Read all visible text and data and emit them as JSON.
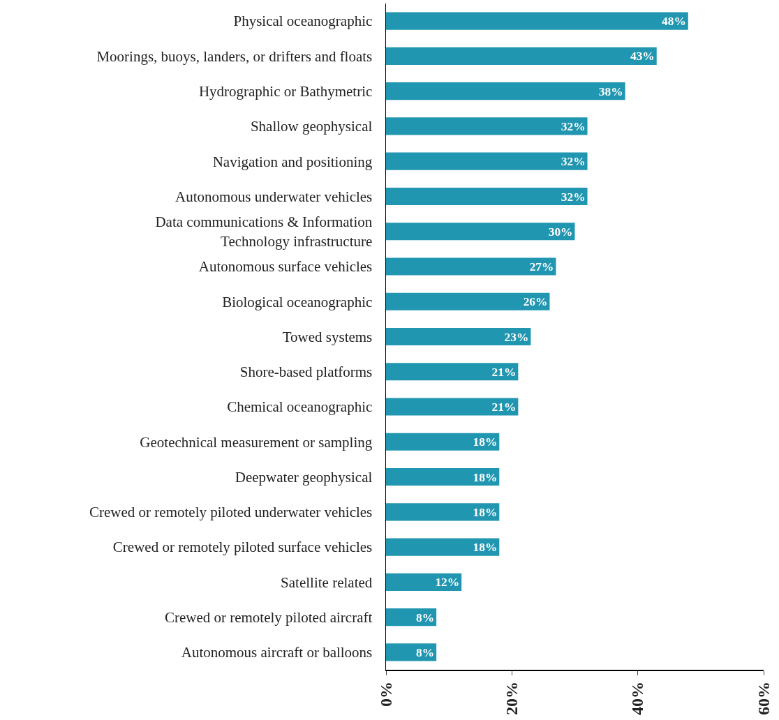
{
  "chart_data": {
    "type": "bar",
    "orientation": "horizontal",
    "categories": [
      "Physical oceanographic",
      "Moorings, buoys, landers, or drifters and floats",
      "Hydrographic or Bathymetric",
      "Shallow geophysical",
      "Navigation and positioning",
      "Autonomous underwater vehicles",
      "Data communications & Information\nTechnology infrastructure",
      "Autonomous surface vehicles",
      "Biological oceanographic",
      "Towed systems",
      "Shore-based platforms",
      "Chemical oceanographic",
      "Geotechnical measurement or sampling",
      "Deepwater geophysical",
      "Crewed or remotely piloted underwater vehicles",
      "Crewed or remotely piloted surface vehicles",
      "Satellite related",
      "Crewed or remotely piloted aircraft",
      "Autonomous aircraft or balloons"
    ],
    "values": [
      48,
      43,
      38,
      32,
      32,
      32,
      30,
      27,
      26,
      23,
      21,
      21,
      18,
      18,
      18,
      18,
      12,
      8,
      8
    ],
    "value_labels": [
      "48%",
      "43%",
      "38%",
      "32%",
      "32%",
      "32%",
      "30%",
      "27%",
      "26%",
      "23%",
      "21%",
      "21%",
      "18%",
      "18%",
      "18%",
      "18%",
      "12%",
      "8%",
      "8%"
    ],
    "color": "#2196b0",
    "xlim": [
      0,
      60
    ],
    "xticks": [
      {
        "value": 0,
        "label": "0%"
      },
      {
        "value": 20,
        "label": "20%"
      },
      {
        "value": 40,
        "label": "40%"
      },
      {
        "value": 60,
        "label": "60%"
      }
    ],
    "grid": false
  }
}
